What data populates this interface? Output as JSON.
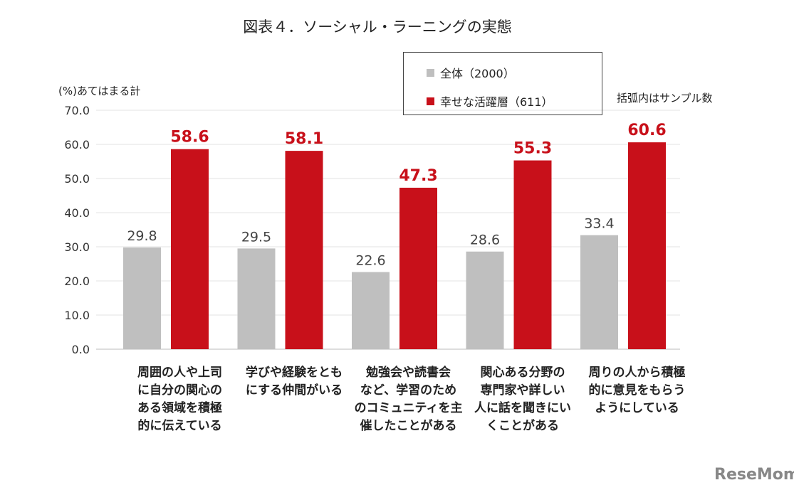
{
  "chart_data": {
    "type": "bar",
    "title": "図表４．ソーシャル・ラーニングの実態",
    "ylabel": "(%)あてはまる計",
    "note": "括弧内はサンプル数",
    "ylim": [
      0,
      70
    ],
    "yticks": [
      "0.0",
      "10.0",
      "20.0",
      "30.0",
      "40.0",
      "50.0",
      "60.0",
      "70.0"
    ],
    "grid": true,
    "legend_placement": "top-right",
    "categories": [
      "周囲の人や上司に自分の関心のある領域を積極的に伝えている",
      "学びや経験をともにする仲間がいる",
      "勉強会や読書会など、学習のためのコミュニティを主催したことがある",
      "関心ある分野の専門家や詳しい人に話を聞きにいくことがある",
      "周りの人から積極的に意見をもらうようにしている"
    ],
    "category_lines": [
      [
        "周囲の人や上司",
        "に自分の関心の",
        "ある領域を積極",
        "的に伝えている"
      ],
      [
        "学びや経験をとも",
        "にする仲間がいる"
      ],
      [
        "勉強会や読書会",
        "など、学習のため",
        "のコミュニティを主",
        "催したことがある"
      ],
      [
        "関心ある分野の",
        "専門家や詳しい",
        "人に話を聞きにい",
        "くことがある"
      ],
      [
        "周りの人から積極",
        "的に意見をもらう",
        "ようにしている"
      ]
    ],
    "series": [
      {
        "name": "全体（2000）",
        "color": "#bfbfbf",
        "label_color": "#444444",
        "values": [
          29.8,
          29.5,
          22.6,
          28.6,
          33.4
        ],
        "labels": [
          "29.8",
          "29.5",
          "22.6",
          "28.6",
          "33.4"
        ]
      },
      {
        "name": "幸せな活躍層（611）",
        "color": "#c8101a",
        "label_color": "#c8101a",
        "values": [
          58.6,
          58.1,
          47.3,
          55.3,
          60.6
        ],
        "labels": [
          "58.6",
          "58.1",
          "47.3",
          "55.3",
          "60.6"
        ]
      }
    ]
  },
  "watermark": "ReseMom"
}
